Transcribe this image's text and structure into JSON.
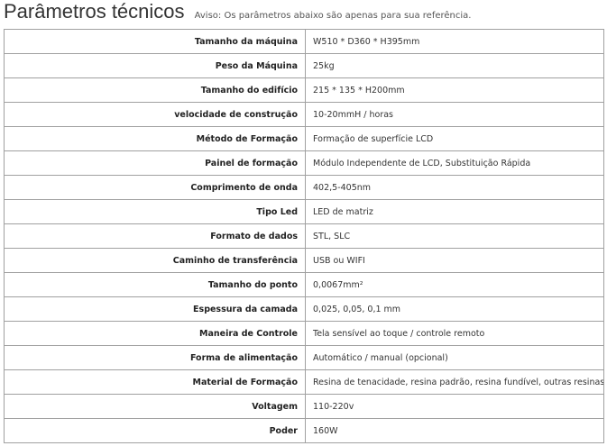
{
  "header": {
    "title": "Parâmetros técnicos",
    "notice": "Aviso: Os parâmetros abaixo são apenas para sua referência."
  },
  "table": {
    "rows": [
      [
        "Tamanho da máquina",
        "W510 * D360 * H395mm"
      ],
      [
        "Peso da Máquina",
        "25kg"
      ],
      [
        "Tamanho do edifício",
        "215 * 135 * H200mm"
      ],
      [
        "velocidade de construção",
        "10-20mmH / horas"
      ],
      [
        "Método de Formação",
        "Formação de superfície LCD"
      ],
      [
        "Painel de formação",
        "Módulo Independente de LCD, Substituição Rápida"
      ],
      [
        "Comprimento de onda",
        "402,5-405nm"
      ],
      [
        "Tipo Led",
        "LED de matriz"
      ],
      [
        "Formato de dados",
        "STL, SLC"
      ],
      [
        "Caminho de transferência",
        "USB ou WIFI"
      ],
      [
        "Tamanho do ponto",
        "0,0067mm²"
      ],
      [
        "Espessura da camada",
        "0,025, 0,05, 0,1 mm"
      ],
      [
        "Maneira de Controle",
        "Tela sensível ao toque / controle remoto"
      ],
      [
        "Forma de alimentação",
        "Automático / manual (opcional)"
      ],
      [
        "Material de Formação",
        "Resina de tenacidade, resina padrão, resina fundível, outras resinas"
      ],
      [
        "Voltagem",
        "110-220v"
      ],
      [
        "Poder",
        "160W"
      ]
    ]
  }
}
